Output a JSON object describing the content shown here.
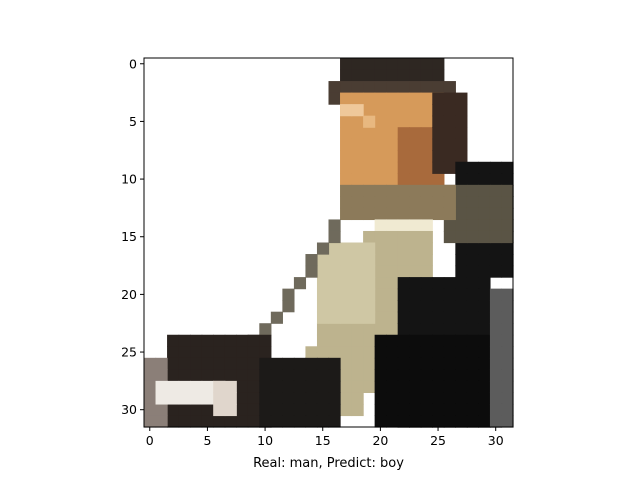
{
  "chart_data": {
    "type": "heatmap",
    "title": "",
    "xlabel": "Real: man, Predict: boy",
    "ylabel": "",
    "xlim": [
      -0.5,
      31.5
    ],
    "ylim": [
      31.5,
      -0.5
    ],
    "xticks": [
      0,
      5,
      10,
      15,
      20,
      25,
      30
    ],
    "yticks": [
      0,
      5,
      10,
      15,
      20,
      25,
      30
    ],
    "xtick_labels": [
      "0",
      "5",
      "10",
      "15",
      "20",
      "25",
      "30"
    ],
    "ytick_labels": [
      "0",
      "5",
      "10",
      "15",
      "20",
      "25",
      "30"
    ],
    "grid": false,
    "image_size": [
      32,
      32
    ],
    "colors": {
      "background": "#ffffff",
      "hair": "#2e2722",
      "skin": "#d69a5a",
      "skin_shadow": "#a86a3c",
      "collar": "#f0ead2",
      "tan_coat": "#bdb38e",
      "dark_coat": "#141414",
      "gray_shoulder": "#6f6a5c",
      "gray_right": "#5c5c5c",
      "bottom_white": "#eeeae4"
    }
  }
}
